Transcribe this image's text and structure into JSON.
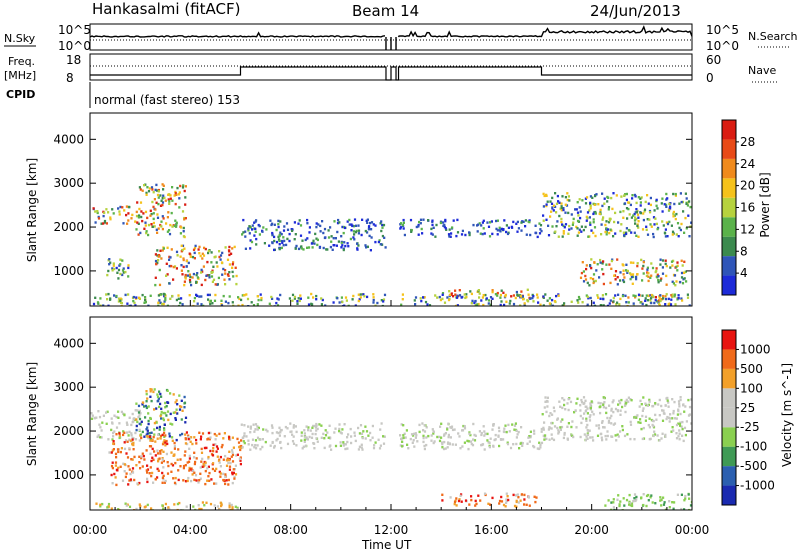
{
  "header": {
    "station": "Hankasalmi (fitACF)",
    "beam": "Beam 14",
    "date": "24/Jun/2013"
  },
  "strip": {
    "nsky_label": "N.Sky",
    "nsearch_label": "N.Search",
    "noise_ticks": [
      "10^5",
      "10^0"
    ],
    "freq_label_1": "Freq.",
    "freq_label_2": "[MHz]",
    "freq_ticks": [
      "18",
      "8"
    ],
    "nave_label": "Nave",
    "nave_ticks": [
      "60",
      "0"
    ],
    "cpid_label": "CPID",
    "cpid_text": "normal (fast stereo) 153"
  },
  "x_axis": {
    "label": "Time UT",
    "ticks": [
      "00:00",
      "04:00",
      "08:00",
      "12:00",
      "16:00",
      "20:00",
      "00:00"
    ],
    "range_hours": [
      0,
      24
    ]
  },
  "colors": {
    "power": [
      "#1d2bd8",
      "#2f55b8",
      "#3b8a4e",
      "#5ab24a",
      "#b6d23e",
      "#f5c21b",
      "#f08a1c",
      "#e84a17",
      "#d91c12"
    ],
    "velocity": [
      "#e81410",
      "#f06a1a",
      "#f2a02a",
      "#c8c8c4",
      "#c8c8c4",
      "#8ad050",
      "#3f9a55",
      "#2b5fb0",
      "#1a2ab0"
    ]
  },
  "chart_data": [
    {
      "type": "heatmap",
      "name": "power",
      "ylabel": "Slant Range [km]",
      "y_ticks": [
        "1000",
        "2000",
        "3000",
        "4000"
      ],
      "ylim": [
        200,
        4600
      ],
      "colorbar_label": "Power [dB]",
      "colorbar_ticks": [
        "4",
        "8",
        "12",
        "16",
        "20",
        "24",
        "28"
      ],
      "colorbar_range": [
        0,
        30
      ],
      "regions": [
        {
          "t": [
            0,
            2
          ],
          "r": [
            2100,
            2500
          ],
          "level": "high"
        },
        {
          "t": [
            1.8,
            3.8
          ],
          "r": [
            1800,
            3000
          ],
          "level": "high"
        },
        {
          "t": [
            2.5,
            5.8
          ],
          "r": [
            700,
            1600
          ],
          "level": "high"
        },
        {
          "t": [
            0.5,
            1.5
          ],
          "r": [
            800,
            1300
          ],
          "level": "mid"
        },
        {
          "t": [
            6,
            11.8
          ],
          "r": [
            1500,
            2200
          ],
          "level": "low"
        },
        {
          "t": [
            12.2,
            18
          ],
          "r": [
            1800,
            2200
          ],
          "level": "low"
        },
        {
          "t": [
            14,
            17.8
          ],
          "r": [
            400,
            600
          ],
          "level": "high"
        },
        {
          "t": [
            18,
            24
          ],
          "r": [
            1800,
            2800
          ],
          "level": "mid"
        },
        {
          "t": [
            19.5,
            23.8
          ],
          "r": [
            700,
            1300
          ],
          "level": "high"
        },
        {
          "t": [
            20.8,
            23.5
          ],
          "r": [
            250,
            500
          ],
          "level": "high"
        },
        {
          "t": [
            0,
            24
          ],
          "r": [
            200,
            500
          ],
          "level": "mid"
        }
      ]
    },
    {
      "type": "heatmap",
      "name": "velocity",
      "ylabel": "Slant Range [km]",
      "y_ticks": [
        "1000",
        "2000",
        "3000",
        "4000"
      ],
      "ylim": [
        200,
        4600
      ],
      "colorbar_label": "Velocity [m s^-1]",
      "colorbar_ticks": [
        "1000",
        "500",
        "100",
        "25",
        "-25",
        "-100",
        "-500",
        "-1000"
      ],
      "regions": [
        {
          "t": [
            0,
            2
          ],
          "r": [
            1800,
            2500
          ],
          "level": "gray"
        },
        {
          "t": [
            1.8,
            3.8
          ],
          "r": [
            1800,
            3000
          ],
          "level": "blue"
        },
        {
          "t": [
            0.7,
            6
          ],
          "r": [
            800,
            2000
          ],
          "level": "orange"
        },
        {
          "t": [
            6,
            18
          ],
          "r": [
            1600,
            2200
          ],
          "level": "gray"
        },
        {
          "t": [
            14,
            17.8
          ],
          "r": [
            300,
            600
          ],
          "level": "orange"
        },
        {
          "t": [
            18,
            24
          ],
          "r": [
            1800,
            2800
          ],
          "level": "gray"
        },
        {
          "t": [
            20.5,
            24
          ],
          "r": [
            200,
            600
          ],
          "level": "green"
        },
        {
          "t": [
            0,
            6
          ],
          "r": [
            200,
            400
          ],
          "level": "yellow"
        }
      ]
    }
  ]
}
